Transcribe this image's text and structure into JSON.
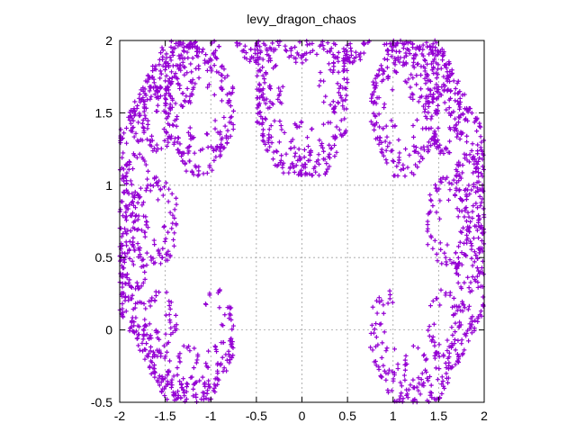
{
  "chart_data": {
    "type": "scatter",
    "title": "levy_dragon_chaos",
    "xlabel": "",
    "ylabel": "",
    "xlim": [
      -2,
      2
    ],
    "ylim": [
      -0.5,
      2
    ],
    "xticks": [
      -2,
      -1.5,
      -1,
      -0.5,
      0,
      0.5,
      1,
      1.5,
      2
    ],
    "yticks": [
      -0.5,
      0,
      0.5,
      1,
      1.5,
      2
    ],
    "xtick_labels": [
      "-2",
      "-1.5",
      "-1",
      "-0.5",
      "0",
      "0.5",
      "1",
      "1.5",
      "2"
    ],
    "ytick_labels": [
      "-0.5",
      "0",
      "0.5",
      "1",
      "1.5",
      "2"
    ],
    "grid": true,
    "legend": "none",
    "marker": "plus",
    "color": "#9400d3",
    "series": [
      {
        "generator": "levy_c_curve_chaos_game",
        "maps": [
          {
            "a": 0.5,
            "b": -0.5,
            "c": 0.5,
            "d": 0.5,
            "e": 0,
            "f": 0
          },
          {
            "a": 0.5,
            "b": 0.5,
            "c": -0.5,
            "d": 0.5,
            "e": 0.5,
            "f": 0.5
          }
        ],
        "point_count": 3500,
        "seed": 7
      }
    ]
  }
}
